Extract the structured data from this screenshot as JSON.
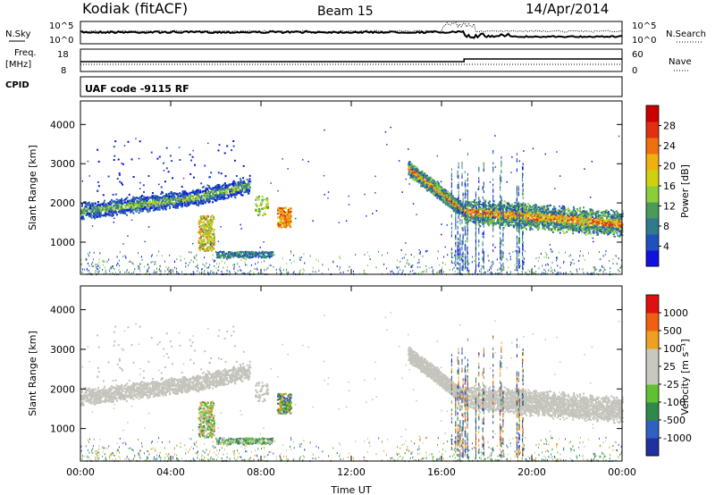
{
  "header": {
    "station": "Kodiak (fitACF)",
    "beam": "Beam 15",
    "date": "14/Apr/2014"
  },
  "top_panel": {
    "left_label": "N.Sky",
    "right_label": "N.Search",
    "left_ticks": [
      "10^5",
      "10^0"
    ],
    "right_ticks": [
      "10^5",
      "10^0"
    ]
  },
  "freq_panel": {
    "left_label_1": "Freq.",
    "left_label_2": "[MHz]",
    "left_ticks": [
      "18",
      "8"
    ],
    "right_ticks": [
      "60",
      "0"
    ],
    "right_label": "Nave"
  },
  "cpid": {
    "label": "CPID",
    "text": "UAF code -9115 RF"
  },
  "chart_data": [
    {
      "type": "heatmap",
      "name": "power",
      "ylabel": "Slant Range [km]",
      "xlabel": "",
      "yticks": [
        "1000",
        "2000",
        "3000",
        "4000"
      ],
      "ylim": [
        180,
        4600
      ],
      "xlim": [
        0,
        24
      ],
      "colorbar": {
        "label": "Power [dB]",
        "ticks": [
          "4",
          "8",
          "12",
          "16",
          "20",
          "24",
          "28"
        ],
        "range": [
          0,
          32
        ],
        "colors": [
          "#1010e0",
          "#2050c0",
          "#2f7a8c",
          "#4a9a5a",
          "#8acf3a",
          "#d0d010",
          "#f0b010",
          "#f07010",
          "#e03010",
          "#cc0000"
        ]
      }
    },
    {
      "type": "heatmap",
      "name": "velocity",
      "ylabel": "Slant Range [km]",
      "xlabel": "Time UT",
      "xticks": [
        "00:00",
        "04:00",
        "08:00",
        "12:00",
        "16:00",
        "20:00",
        "00:00"
      ],
      "yticks": [
        "1000",
        "2000",
        "3000",
        "4000"
      ],
      "ylim": [
        180,
        4600
      ],
      "xlim": [
        0,
        24
      ],
      "colorbar": {
        "label": "Velocity [m s⁻¹]",
        "ticks": [
          "1000",
          "500",
          "100",
          "25",
          "-25",
          "-100",
          "-500",
          "-1000"
        ],
        "colors": [
          "#2030a0",
          "#3060c0",
          "#2f8a4a",
          "#60c030",
          "#c8c8c0",
          "#c8c8c0",
          "#f0a020",
          "#f06010",
          "#e01010"
        ]
      }
    }
  ]
}
